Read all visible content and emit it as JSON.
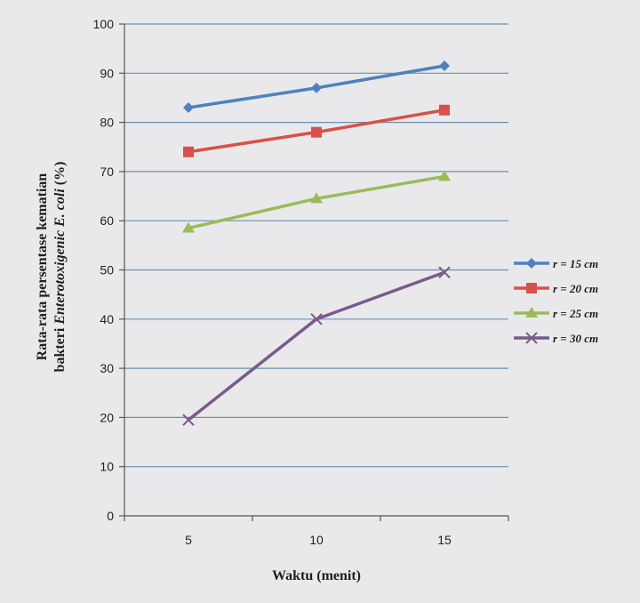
{
  "chart_data": {
    "type": "line",
    "categories": [
      5,
      10,
      15
    ],
    "x": [
      5,
      10,
      15
    ],
    "xlabel": "Waktu (menit)",
    "ylabel_line1": "Rata-rata persentase kematian",
    "ylabel_line2_prefix": "bakteri",
    "ylabel_line2_italic": "Enterotoxigenic E. coli",
    "ylabel_line2_suffix": "(%)",
    "ylim": [
      0,
      100
    ],
    "yticks": [
      0,
      10,
      20,
      30,
      40,
      50,
      60,
      70,
      80,
      90,
      100
    ],
    "xtick_labels": [
      "5",
      "10",
      "15"
    ],
    "grid": true,
    "legend_position": "right",
    "series": [
      {
        "name": "r = 15 cm",
        "values": [
          83,
          87,
          91.5
        ],
        "color": "#4f81bd",
        "marker": "diamond"
      },
      {
        "name": "r = 20 cm",
        "values": [
          74,
          78,
          82.5
        ],
        "color": "#d9504a",
        "marker": "square"
      },
      {
        "name": "r = 25 cm",
        "values": [
          58.5,
          64.5,
          69
        ],
        "color": "#9bbb59",
        "marker": "triangle"
      },
      {
        "name": "r = 30 cm",
        "values": [
          19.5,
          40,
          49.5
        ],
        "color": "#7a5a8a",
        "marker": "x"
      }
    ]
  }
}
